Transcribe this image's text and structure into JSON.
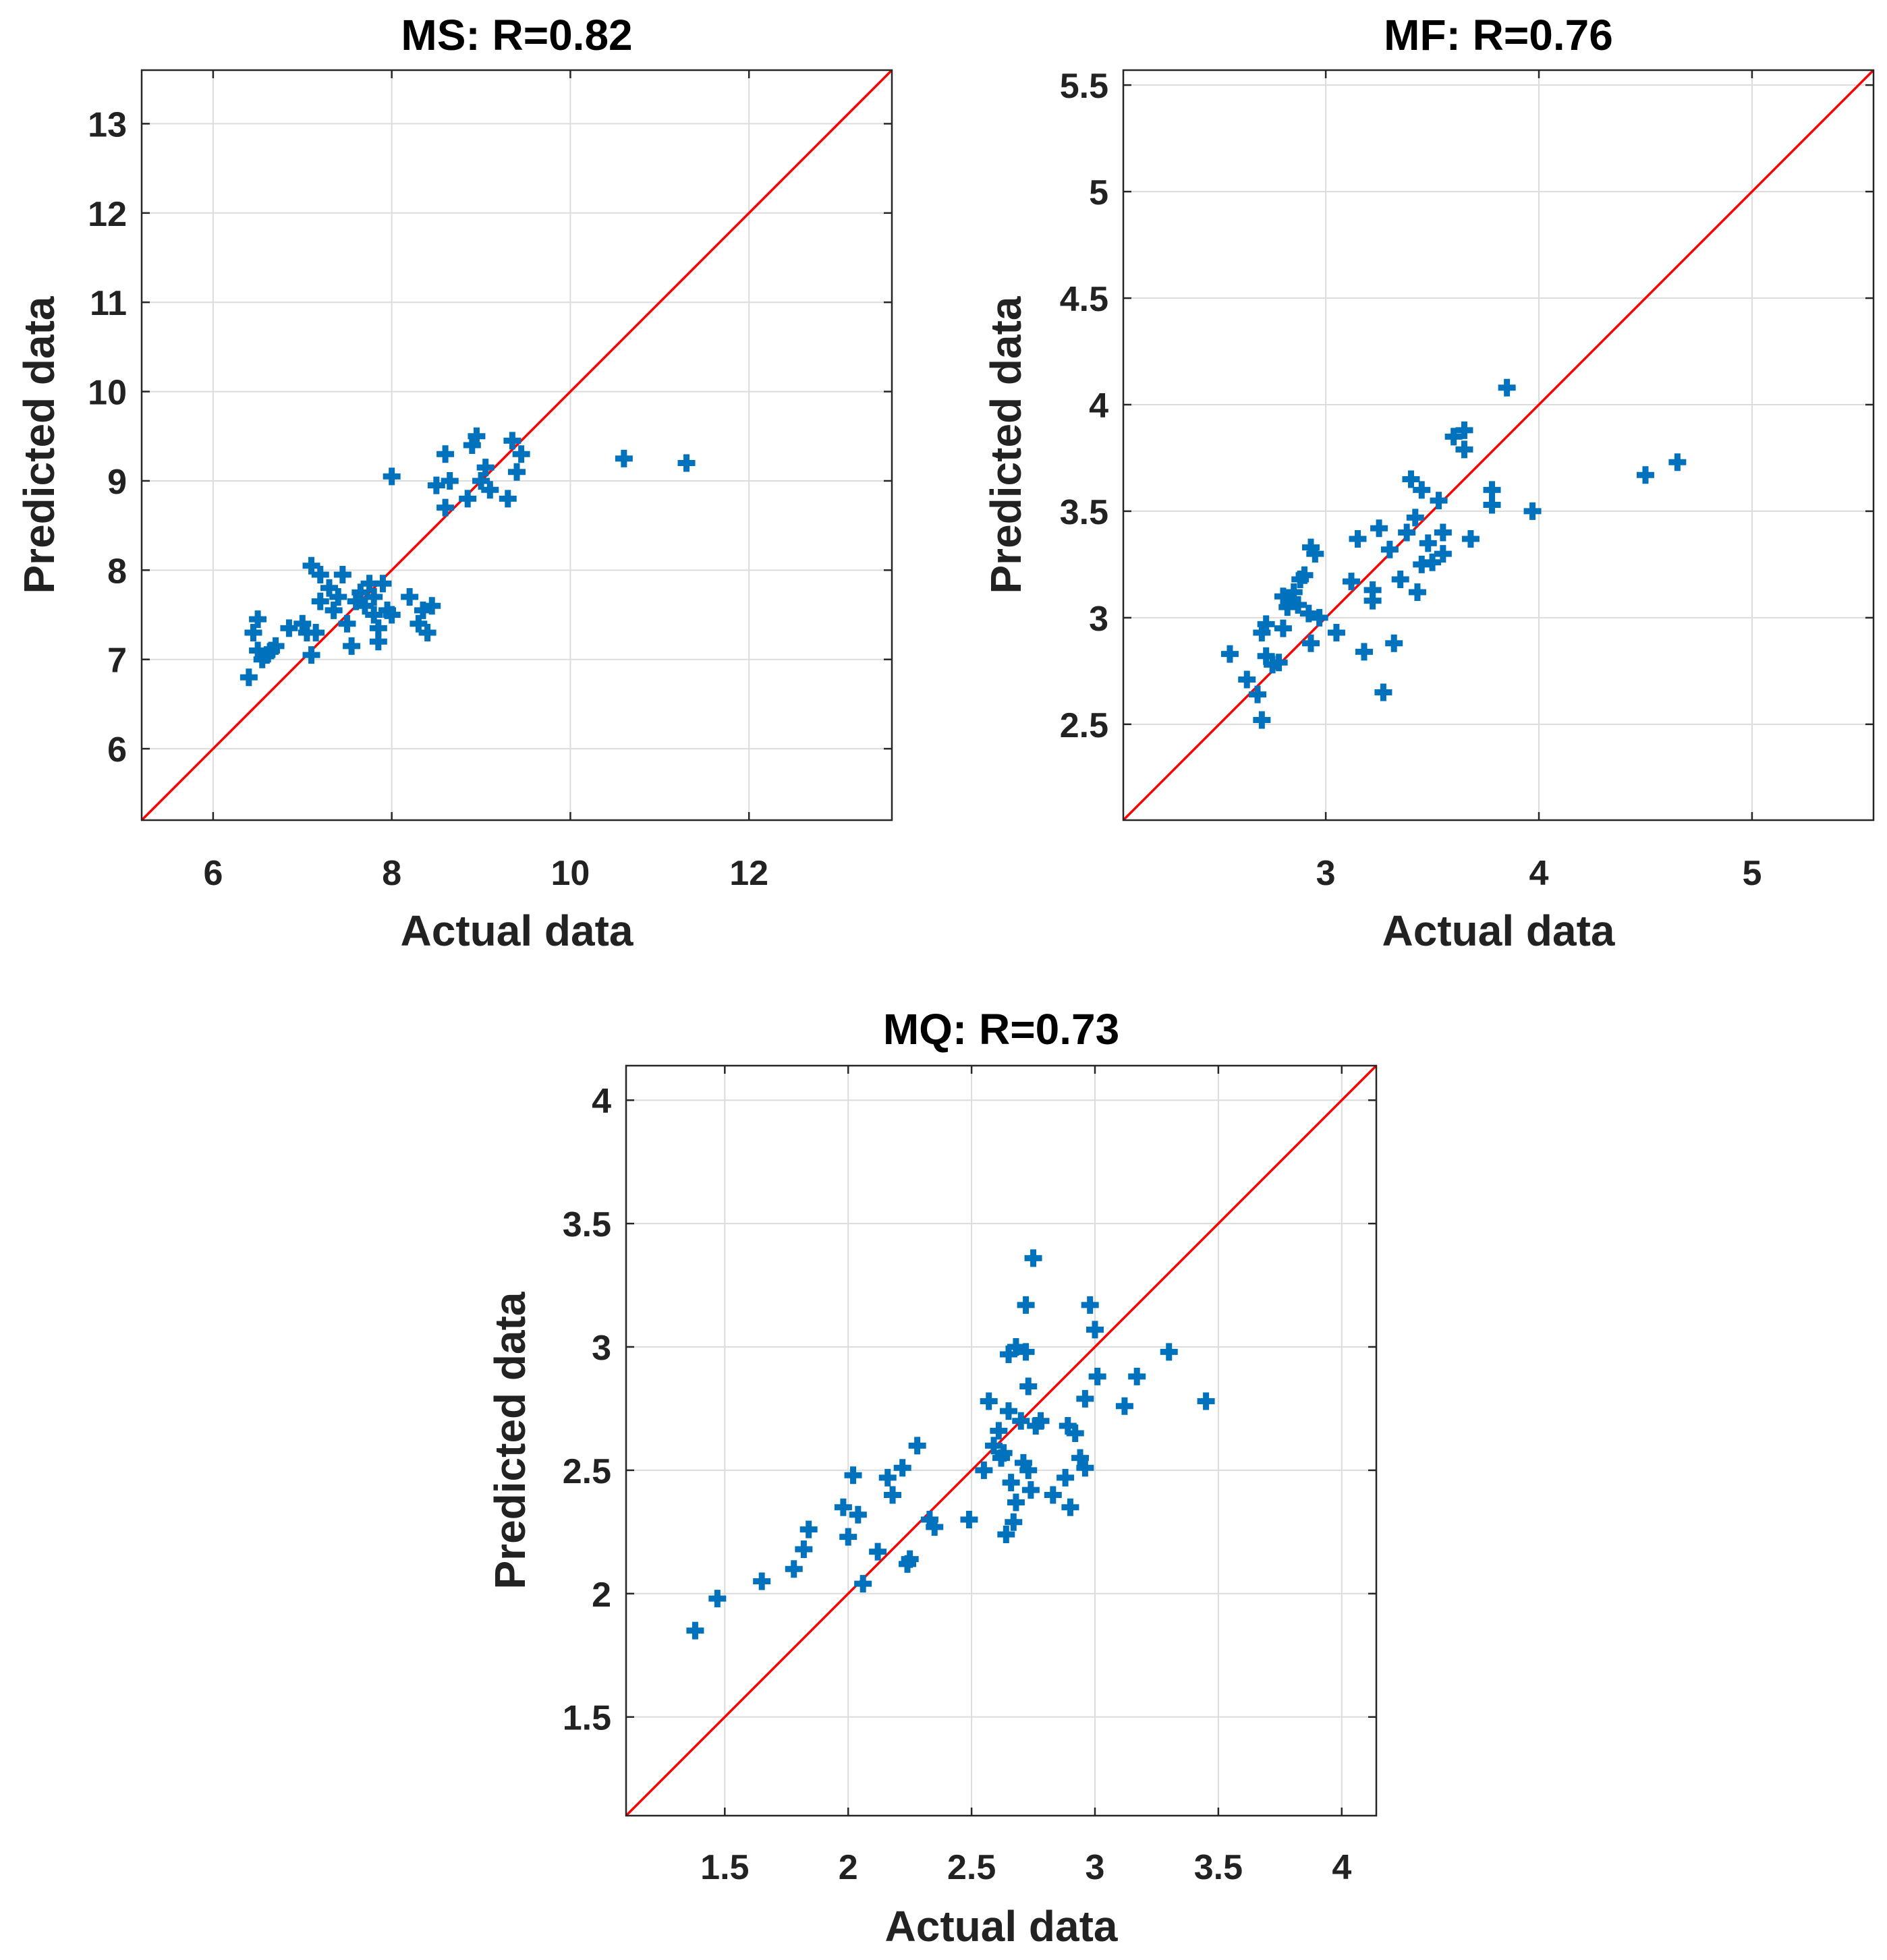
{
  "chart_data": [
    {
      "id": "ms",
      "type": "scatter",
      "title": "MS: R=0.82",
      "xlabel": "Actual data",
      "ylabel": "Predicted data",
      "xlim": [
        5.2,
        13.6
      ],
      "ylim": [
        5.2,
        13.6
      ],
      "xticks": [
        6,
        8,
        10,
        12
      ],
      "yticks": [
        6,
        7,
        8,
        9,
        10,
        11,
        12,
        13
      ],
      "xtick_labels": [
        "6",
        "8",
        "10",
        "12"
      ],
      "ytick_labels": [
        "6",
        "7",
        "8",
        "9",
        "10",
        "11",
        "12",
        "13"
      ],
      "grid": true,
      "reference_line": "y = x",
      "marker_color": "#0072bd",
      "line_color": "#ff0000",
      "points": [
        [
          6.4,
          6.8
        ],
        [
          6.45,
          7.3
        ],
        [
          6.5,
          7.45
        ],
        [
          6.5,
          7.1
        ],
        [
          6.55,
          7.0
        ],
        [
          6.6,
          7.05
        ],
        [
          6.65,
          7.1
        ],
        [
          6.7,
          7.15
        ],
        [
          6.85,
          7.35
        ],
        [
          7.0,
          7.4
        ],
        [
          7.05,
          7.3
        ],
        [
          7.1,
          7.05
        ],
        [
          7.1,
          8.05
        ],
        [
          7.15,
          7.3
        ],
        [
          7.2,
          7.95
        ],
        [
          7.2,
          7.65
        ],
        [
          7.3,
          7.8
        ],
        [
          7.35,
          7.55
        ],
        [
          7.4,
          7.7
        ],
        [
          7.45,
          7.95
        ],
        [
          7.5,
          7.4
        ],
        [
          7.55,
          7.15
        ],
        [
          7.6,
          7.65
        ],
        [
          7.65,
          7.75
        ],
        [
          7.7,
          7.6
        ],
        [
          7.75,
          7.85
        ],
        [
          7.8,
          7.7
        ],
        [
          7.8,
          7.5
        ],
        [
          7.85,
          7.2
        ],
        [
          7.85,
          7.35
        ],
        [
          7.9,
          7.85
        ],
        [
          7.95,
          7.55
        ],
        [
          8.0,
          7.5
        ],
        [
          8.0,
          9.05
        ],
        [
          8.2,
          7.7
        ],
        [
          8.3,
          7.4
        ],
        [
          8.35,
          7.55
        ],
        [
          8.4,
          7.3
        ],
        [
          8.45,
          7.6
        ],
        [
          8.5,
          8.95
        ],
        [
          8.6,
          8.7
        ],
        [
          8.6,
          9.3
        ],
        [
          8.65,
          9.0
        ],
        [
          8.85,
          8.8
        ],
        [
          8.9,
          9.4
        ],
        [
          8.95,
          9.5
        ],
        [
          9.0,
          9.0
        ],
        [
          9.05,
          9.15
        ],
        [
          9.1,
          8.9
        ],
        [
          9.3,
          8.8
        ],
        [
          9.35,
          9.45
        ],
        [
          9.4,
          9.1
        ],
        [
          9.45,
          9.3
        ],
        [
          10.6,
          9.25
        ],
        [
          11.3,
          9.2
        ]
      ]
    },
    {
      "id": "mf",
      "type": "scatter",
      "title": "MF: R=0.76",
      "xlabel": "Actual data",
      "ylabel": "Predicted data",
      "xlim": [
        2.05,
        5.57
      ],
      "ylim": [
        2.05,
        5.57
      ],
      "xticks": [
        3,
        4,
        5
      ],
      "yticks": [
        2.5,
        3,
        3.5,
        4,
        4.5,
        5,
        5.5
      ],
      "xtick_labels": [
        "3",
        "4",
        "5"
      ],
      "ytick_labels": [
        "2.5",
        "3",
        "3.5",
        "4",
        "4.5",
        "5",
        "5.5"
      ],
      "grid": true,
      "reference_line": "y = x",
      "marker_color": "#0072bd",
      "line_color": "#ff0000",
      "points": [
        [
          2.55,
          2.83
        ],
        [
          2.63,
          2.71
        ],
        [
          2.68,
          2.64
        ],
        [
          2.7,
          2.52
        ],
        [
          2.7,
          2.93
        ],
        [
          2.72,
          2.97
        ],
        [
          2.72,
          2.82
        ],
        [
          2.75,
          2.78
        ],
        [
          2.78,
          2.79
        ],
        [
          2.8,
          2.95
        ],
        [
          2.8,
          3.1
        ],
        [
          2.82,
          3.05
        ],
        [
          2.83,
          3.08
        ],
        [
          2.85,
          3.12
        ],
        [
          2.87,
          3.06
        ],
        [
          2.88,
          3.18
        ],
        [
          2.9,
          3.2
        ],
        [
          2.92,
          3.02
        ],
        [
          2.93,
          2.88
        ],
        [
          2.93,
          3.33
        ],
        [
          2.95,
          3.3
        ],
        [
          2.97,
          3.0
        ],
        [
          3.05,
          2.93
        ],
        [
          3.12,
          3.17
        ],
        [
          3.15,
          3.37
        ],
        [
          3.18,
          2.84
        ],
        [
          3.22,
          3.08
        ],
        [
          3.22,
          3.13
        ],
        [
          3.25,
          3.42
        ],
        [
          3.27,
          2.65
        ],
        [
          3.3,
          3.32
        ],
        [
          3.32,
          2.88
        ],
        [
          3.35,
          3.18
        ],
        [
          3.38,
          3.4
        ],
        [
          3.4,
          3.65
        ],
        [
          3.42,
          3.47
        ],
        [
          3.43,
          3.12
        ],
        [
          3.45,
          3.6
        ],
        [
          3.45,
          3.25
        ],
        [
          3.48,
          3.35
        ],
        [
          3.5,
          3.26
        ],
        [
          3.53,
          3.55
        ],
        [
          3.55,
          3.3
        ],
        [
          3.55,
          3.4
        ],
        [
          3.6,
          3.85
        ],
        [
          3.65,
          3.79
        ],
        [
          3.65,
          3.88
        ],
        [
          3.68,
          3.37
        ],
        [
          3.78,
          3.53
        ],
        [
          3.78,
          3.6
        ],
        [
          3.85,
          4.08
        ],
        [
          3.97,
          3.5
        ],
        [
          4.5,
          3.67
        ],
        [
          4.65,
          3.73
        ]
      ]
    },
    {
      "id": "mq",
      "type": "scatter",
      "title": "MQ: R=0.73",
      "xlabel": "Actual data",
      "ylabel": "Predicted data",
      "xlim": [
        1.1,
        4.14
      ],
      "ylim": [
        1.1,
        4.14
      ],
      "xticks": [
        1.5,
        2,
        2.5,
        3,
        3.5,
        4
      ],
      "yticks": [
        1.5,
        2,
        2.5,
        3,
        3.5,
        4
      ],
      "xtick_labels": [
        "1.5",
        "2",
        "2.5",
        "3",
        "3.5",
        "4"
      ],
      "ytick_labels": [
        "1.5",
        "2",
        "2.5",
        "3",
        "3.5",
        "4"
      ],
      "grid": true,
      "reference_line": "y = x",
      "marker_color": "#0072bd",
      "line_color": "#ff0000",
      "points": [
        [
          1.38,
          1.85
        ],
        [
          1.47,
          1.98
        ],
        [
          1.65,
          2.05
        ],
        [
          1.78,
          2.1
        ],
        [
          1.82,
          2.18
        ],
        [
          1.84,
          2.26
        ],
        [
          1.98,
          2.35
        ],
        [
          2.0,
          2.23
        ],
        [
          2.02,
          2.48
        ],
        [
          2.04,
          2.32
        ],
        [
          2.06,
          2.04
        ],
        [
          2.12,
          2.17
        ],
        [
          2.16,
          2.47
        ],
        [
          2.18,
          2.4
        ],
        [
          2.22,
          2.51
        ],
        [
          2.24,
          2.12
        ],
        [
          2.25,
          2.14
        ],
        [
          2.28,
          2.6
        ],
        [
          2.33,
          2.3
        ],
        [
          2.35,
          2.27
        ],
        [
          2.49,
          2.3
        ],
        [
          2.55,
          2.5
        ],
        [
          2.57,
          2.78
        ],
        [
          2.59,
          2.6
        ],
        [
          2.61,
          2.66
        ],
        [
          2.62,
          2.55
        ],
        [
          2.63,
          2.57
        ],
        [
          2.64,
          2.24
        ],
        [
          2.65,
          2.97
        ],
        [
          2.65,
          2.74
        ],
        [
          2.66,
          2.45
        ],
        [
          2.67,
          2.29
        ],
        [
          2.68,
          3.0
        ],
        [
          2.68,
          2.37
        ],
        [
          2.7,
          2.7
        ],
        [
          2.71,
          2.53
        ],
        [
          2.72,
          3.17
        ],
        [
          2.72,
          2.98
        ],
        [
          2.73,
          2.84
        ],
        [
          2.73,
          2.5
        ],
        [
          2.74,
          2.42
        ],
        [
          2.75,
          3.36
        ],
        [
          2.76,
          2.68
        ],
        [
          2.78,
          2.7
        ],
        [
          2.83,
          2.4
        ],
        [
          2.88,
          2.47
        ],
        [
          2.89,
          2.68
        ],
        [
          2.9,
          2.35
        ],
        [
          2.92,
          2.65
        ],
        [
          2.94,
          2.55
        ],
        [
          2.96,
          2.51
        ],
        [
          2.96,
          2.79
        ],
        [
          2.98,
          3.17
        ],
        [
          3.0,
          3.07
        ],
        [
          3.01,
          2.88
        ],
        [
          3.12,
          2.76
        ],
        [
          3.17,
          2.88
        ],
        [
          3.3,
          2.98
        ],
        [
          3.45,
          2.78
        ]
      ]
    }
  ]
}
